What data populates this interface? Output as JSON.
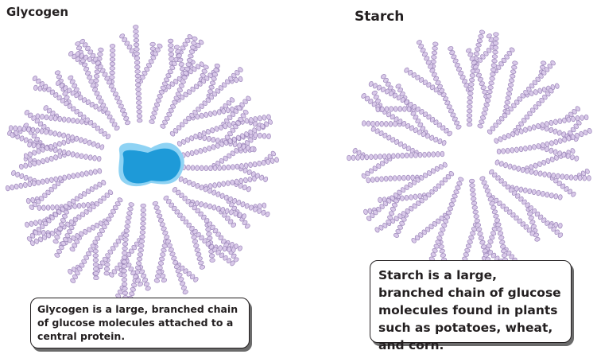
{
  "panels": {
    "glycogen": {
      "title": "Glycogen",
      "caption": "Glycogen is a large, branched chain of glucose molecules attached to a central protein."
    },
    "starch": {
      "title": "Starch",
      "caption": "Starch is a large, branched chain of glucose molecules found in plants such as potatoes, wheat, and corn."
    }
  },
  "colors": {
    "glucose_fill": "#d9c9e9",
    "glucose_stroke": "#9a84b8",
    "protein_light": "#8fd3f4",
    "protein_dark": "#1e9ad8",
    "text": "#231f20"
  }
}
